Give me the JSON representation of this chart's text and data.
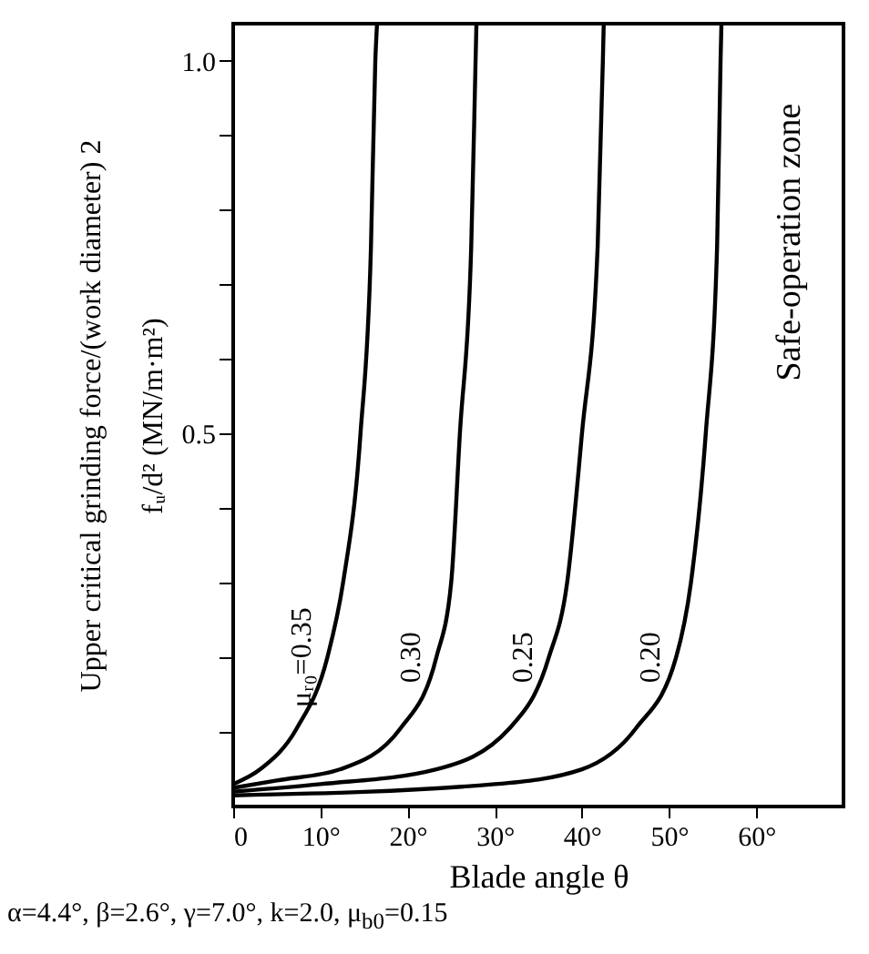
{
  "chart_data": {
    "type": "line",
    "xlabel": "Blade angle θ",
    "ylabel": "Upper critical grinding force/(work diameter) 2\nfᵤ/d² (MN/m·m²)",
    "xlim": [
      0,
      70
    ],
    "xticks": [
      {
        "value": 0,
        "label": "0"
      },
      {
        "value": 10,
        "label": "10°"
      },
      {
        "value": 20,
        "label": "20°"
      },
      {
        "value": 30,
        "label": "30°"
      },
      {
        "value": 40,
        "label": "40°"
      },
      {
        "value": 50,
        "label": "50°"
      },
      {
        "value": 60,
        "label": "60°"
      }
    ],
    "ylim": [
      0,
      1.05
    ],
    "yticks": [
      {
        "value": 0.1,
        "label": null
      },
      {
        "value": 0.2,
        "label": null
      },
      {
        "value": 0.3,
        "label": null
      },
      {
        "value": 0.4,
        "label": null
      },
      {
        "value": 0.5,
        "label": "0.5"
      },
      {
        "value": 0.6,
        "label": null
      },
      {
        "value": 0.7,
        "label": null
      },
      {
        "value": 0.8,
        "label": null
      },
      {
        "value": 0.9,
        "label": null
      },
      {
        "value": 1.0,
        "label": "1.0"
      }
    ],
    "series": [
      {
        "name": "μᵣ₀=0.35",
        "color": "#000000",
        "x": [
          0,
          3.1,
          7.3,
          10.8,
          12.6,
          14.6,
          15.8,
          16.3,
          16.5
        ],
        "values": [
          0.03,
          0.05,
          0.105,
          0.2,
          0.3,
          0.5,
          0.75,
          1.0,
          1.05
        ]
      },
      {
        "name": "0.30",
        "color": "#000000",
        "x": [
          0,
          5,
          12.3,
          19.2,
          23.3,
          25,
          26,
          27.3,
          27.8,
          27.9
        ],
        "values": [
          0.025,
          0.035,
          0.05,
          0.105,
          0.2,
          0.3,
          0.5,
          0.75,
          1.0,
          1.05
        ]
      },
      {
        "name": "0.25",
        "color": "#000000",
        "x": [
          0,
          10,
          23.3,
          31.7,
          36.2,
          38.3,
          40,
          41.8,
          42.4,
          42.5
        ],
        "values": [
          0.02,
          0.03,
          0.05,
          0.105,
          0.2,
          0.3,
          0.5,
          0.75,
          1.0,
          1.05
        ]
      },
      {
        "name": "0.20",
        "color": "#000000",
        "x": [
          0,
          30,
          40,
          46.2,
          50.8,
          52.5,
          54.2,
          55.5,
          55.9,
          56
        ],
        "values": [
          0.015,
          0.03,
          0.05,
          0.105,
          0.2,
          0.3,
          0.5,
          0.75,
          1.0,
          1.05
        ]
      }
    ],
    "annotations": [
      "Safe-operation zone",
      "α=4.4°, β=2.6°, γ=7.0°, k=2.0, μ$_{b0}$=0.15"
    ],
    "marker": "none",
    "line_style": "solid",
    "grid": false
  }
}
